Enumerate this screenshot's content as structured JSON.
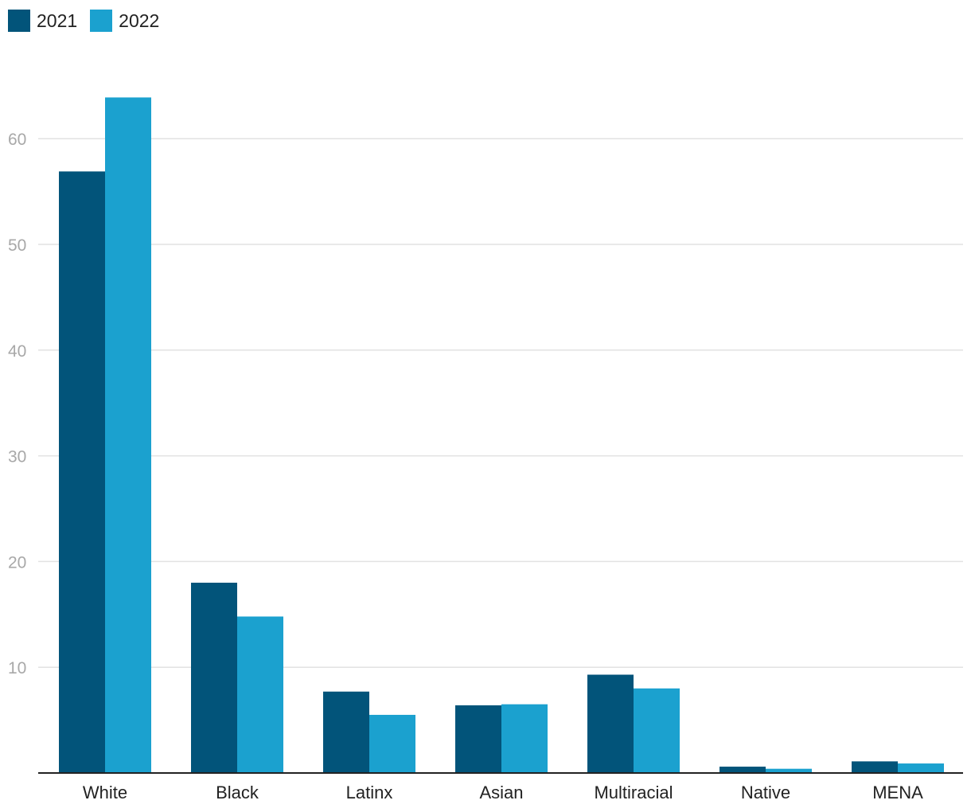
{
  "chart_data": {
    "type": "bar",
    "categories": [
      "White",
      "Black",
      "Latinx",
      "Asian",
      "Multiracial",
      "Native",
      "MENA"
    ],
    "series": [
      {
        "name": "2021",
        "color": "#02547a",
        "values": [
          56.9,
          18.0,
          7.7,
          6.4,
          9.3,
          0.6,
          1.1
        ]
      },
      {
        "name": "2022",
        "color": "#1ba1cf",
        "values": [
          63.9,
          14.8,
          5.5,
          6.5,
          8.0,
          0.4,
          0.9
        ]
      }
    ],
    "yticks": [
      10,
      20,
      30,
      40,
      50,
      60
    ],
    "ylim": [
      0,
      65
    ],
    "grid": true,
    "legend_position": "top-left",
    "title": "",
    "xlabel": "",
    "ylabel": ""
  }
}
